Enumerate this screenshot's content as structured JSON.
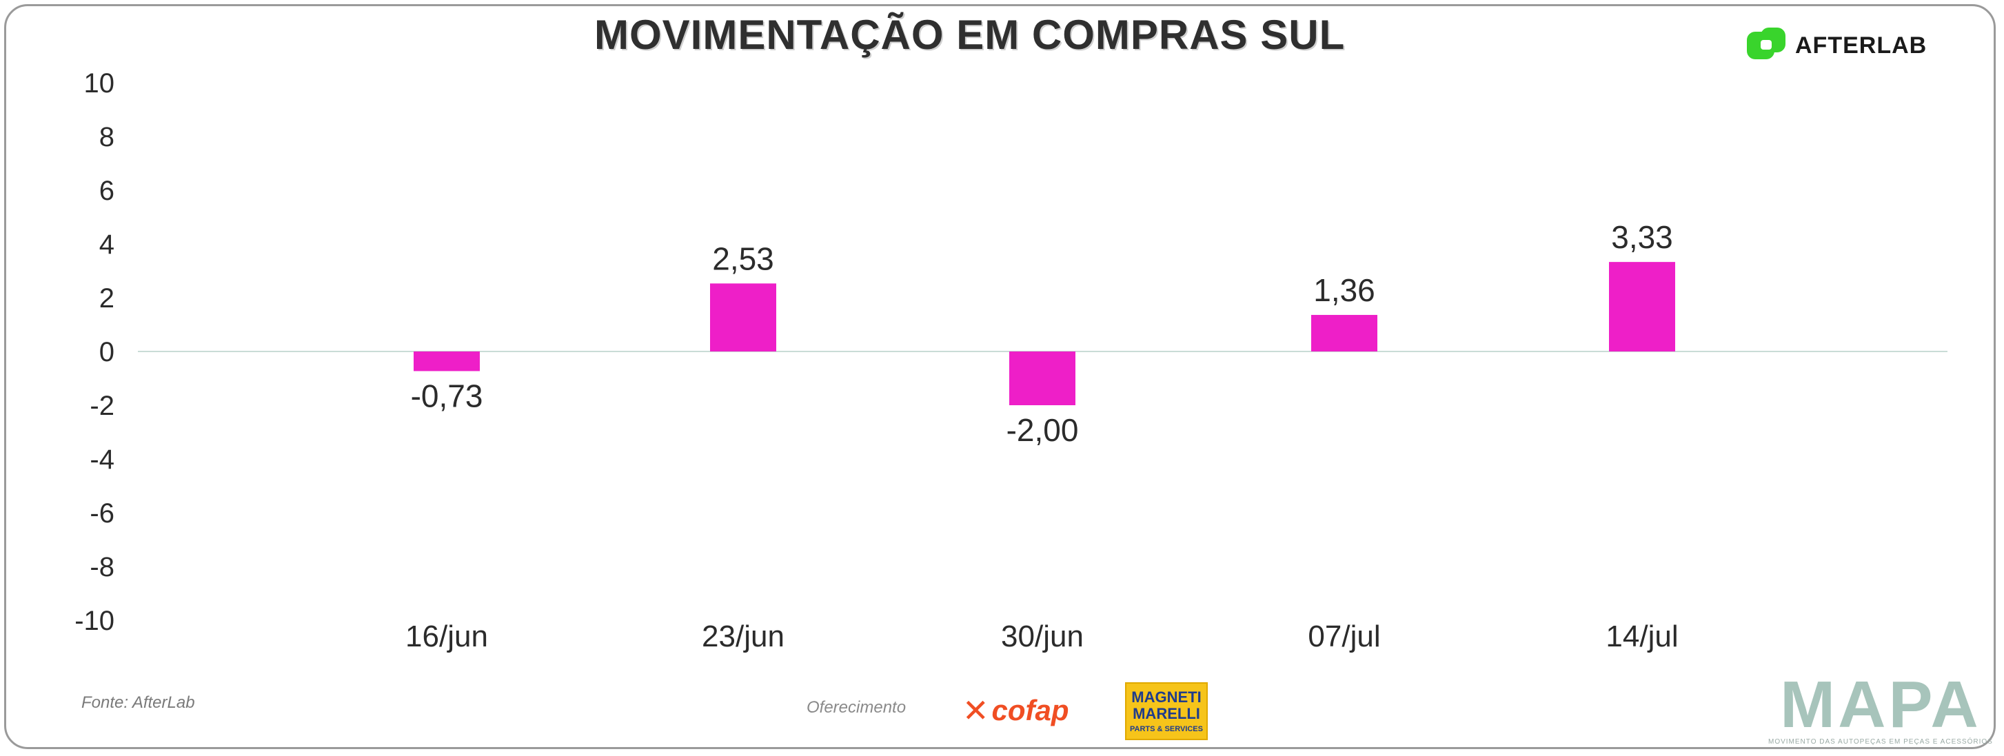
{
  "title": "MOVIMENTAÇÃO EM COMPRAS SUL",
  "brand": {
    "afterlab": "AFTERLAB",
    "afterlab_color": "#39d42c",
    "cofap": "cofap",
    "magneti_line1": "MAGNETI MARELLI",
    "magneti_line2": "PARTS & SERVICES",
    "mapa": "MAPA",
    "mapa_tagline": "MOVIMENTO DAS AUTOPEÇAS EM PEÇAS E ACESSÓRIOS"
  },
  "footer": {
    "source": "Fonte: AfterLab",
    "sponsor_label": "Oferecimento"
  },
  "colors": {
    "bar": "#ee1fc8",
    "baseline": "#c9dcd6",
    "text": "#2b2b2b"
  },
  "chart_data": {
    "type": "bar",
    "title": "MOVIMENTAÇÃO EM COMPRAS SUL",
    "categories": [
      "16/jun",
      "23/jun",
      "30/jun",
      "07/jul",
      "14/jul"
    ],
    "values": [
      -0.73,
      2.53,
      -2.0,
      1.36,
      3.33
    ],
    "value_labels": [
      "-0,73",
      "2,53",
      "-2,00",
      "1,36",
      "3,33"
    ],
    "yticks": [
      10,
      8,
      6,
      4,
      2,
      0,
      -2,
      -4,
      -6,
      -8,
      -10
    ],
    "ylim": [
      -10,
      10
    ],
    "xlabel": "",
    "ylabel": "",
    "grid": false,
    "legend": "none"
  }
}
